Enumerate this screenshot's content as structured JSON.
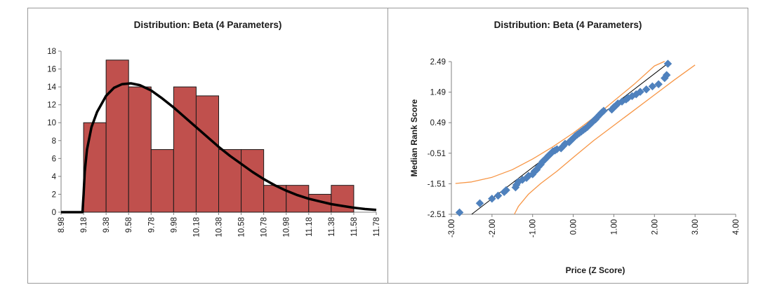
{
  "colors": {
    "bar_fill": "#C0504D",
    "bar_stroke": "#1a1a1a",
    "curve": "#000000",
    "points": "#4F81BD",
    "conf_band": "#F79646",
    "fit_line": "#000000",
    "axis": "#808080"
  },
  "chart_data": [
    {
      "type": "bar",
      "subtype": "histogram_with_fitted_curve",
      "title": "Distribution: Beta (4 Parameters)",
      "xlabel": "",
      "ylabel": "",
      "x_ticks": [
        "8.98",
        "9.18",
        "9.38",
        "9.58",
        "9.78",
        "9.98",
        "10.18",
        "10.38",
        "10.58",
        "10.78",
        "10.98",
        "11.18",
        "11.38",
        "11.58",
        "11.78"
      ],
      "xlim": [
        8.98,
        11.78
      ],
      "y_ticks": [
        "0",
        "2",
        "4",
        "6",
        "8",
        "10",
        "12",
        "14",
        "16",
        "18"
      ],
      "ylim": [
        0,
        18
      ],
      "grid": false,
      "bins": [
        {
          "start": 9.18,
          "end": 9.38,
          "count": 10
        },
        {
          "start": 9.38,
          "end": 9.58,
          "count": 17
        },
        {
          "start": 9.58,
          "end": 9.78,
          "count": 14
        },
        {
          "start": 9.78,
          "end": 9.98,
          "count": 7
        },
        {
          "start": 9.98,
          "end": 10.18,
          "count": 14
        },
        {
          "start": 10.18,
          "end": 10.38,
          "count": 13
        },
        {
          "start": 10.38,
          "end": 10.58,
          "count": 7
        },
        {
          "start": 10.58,
          "end": 10.78,
          "count": 7
        },
        {
          "start": 10.78,
          "end": 10.98,
          "count": 3
        },
        {
          "start": 10.98,
          "end": 11.18,
          "count": 3
        },
        {
          "start": 11.18,
          "end": 11.38,
          "count": 2
        },
        {
          "start": 11.38,
          "end": 11.58,
          "count": 3
        }
      ],
      "fitted_curve": {
        "name": "Beta (4 Parameters)",
        "x": [
          8.98,
          9.16,
          9.17,
          9.18,
          9.19,
          9.21,
          9.25,
          9.3,
          9.38,
          9.45,
          9.52,
          9.6,
          9.68,
          9.78,
          9.88,
          9.98,
          10.08,
          10.18,
          10.28,
          10.38,
          10.48,
          10.58,
          10.68,
          10.78,
          10.88,
          10.98,
          11.08,
          11.18,
          11.28,
          11.38,
          11.48,
          11.58,
          11.68,
          11.78
        ],
        "y": [
          0,
          0,
          0,
          2,
          4.5,
          7,
          9.5,
          11.2,
          13.0,
          13.9,
          14.3,
          14.4,
          14.2,
          13.6,
          12.7,
          11.7,
          10.6,
          9.5,
          8.4,
          7.3,
          6.3,
          5.4,
          4.5,
          3.7,
          3.0,
          2.4,
          1.9,
          1.5,
          1.2,
          0.9,
          0.7,
          0.5,
          0.35,
          0.25
        ]
      }
    },
    {
      "type": "scatter",
      "subtype": "probability_plot",
      "title": "Distribution: Beta (4 Parameters)",
      "xlabel": "Price (Z Score)",
      "ylabel": "Median Rank Score",
      "x_ticks": [
        "-3.00",
        "-2.00",
        "-1.00",
        "0.00",
        "1.00",
        "2.00",
        "3.00",
        "4.00"
      ],
      "xlim": [
        -3,
        4
      ],
      "y_ticks": [
        "2.49",
        "1.49",
        "0.49",
        "-0.51",
        "-1.51",
        "-2.51"
      ],
      "ylim": [
        -2.51,
        2.49
      ],
      "grid": false,
      "points": {
        "x": [
          -2.8,
          -2.3,
          -2.0,
          -1.85,
          -1.7,
          -1.65,
          -1.42,
          -1.4,
          -1.35,
          -1.25,
          -1.15,
          -1.1,
          -1.0,
          -0.95,
          -0.9,
          -0.85,
          -0.8,
          -0.75,
          -0.7,
          -0.65,
          -0.6,
          -0.55,
          -0.5,
          -0.45,
          -0.4,
          -0.3,
          -0.25,
          -0.2,
          -0.1,
          -0.05,
          0.0,
          0.05,
          0.1,
          0.15,
          0.2,
          0.25,
          0.3,
          0.35,
          0.4,
          0.45,
          0.5,
          0.55,
          0.6,
          0.65,
          0.7,
          0.75,
          0.95,
          1.0,
          1.05,
          1.1,
          1.2,
          1.3,
          1.35,
          1.45,
          1.55,
          1.65,
          1.8,
          1.95,
          2.1,
          2.25,
          2.3,
          2.33
        ],
        "y": [
          -2.45,
          -2.15,
          -2.0,
          -1.9,
          -1.78,
          -1.72,
          -1.63,
          -1.55,
          -1.45,
          -1.38,
          -1.32,
          -1.25,
          -1.2,
          -1.1,
          -1.05,
          -0.95,
          -0.88,
          -0.78,
          -0.72,
          -0.65,
          -0.58,
          -0.52,
          -0.45,
          -0.42,
          -0.38,
          -0.35,
          -0.28,
          -0.2,
          -0.15,
          -0.08,
          -0.02,
          0.05,
          0.1,
          0.15,
          0.2,
          0.25,
          0.3,
          0.35,
          0.42,
          0.48,
          0.55,
          0.6,
          0.68,
          0.75,
          0.82,
          0.88,
          0.92,
          1.0,
          1.05,
          1.12,
          1.18,
          1.25,
          1.3,
          1.36,
          1.42,
          1.5,
          1.58,
          1.68,
          1.75,
          1.95,
          2.05,
          2.42
        ]
      },
      "fit_line": {
        "x": [
          -2.5,
          2.35
        ],
        "y": [
          -2.51,
          2.45
        ]
      },
      "upper_band": {
        "x": [
          -2.9,
          -2.5,
          -2.0,
          -1.5,
          -1.0,
          -0.5,
          0.0,
          0.5,
          1.0,
          1.5,
          2.0,
          2.25
        ],
        "y": [
          -1.5,
          -1.45,
          -1.3,
          -1.05,
          -0.7,
          -0.3,
          0.15,
          0.65,
          1.2,
          1.75,
          2.35,
          2.5
        ]
      },
      "lower_band": {
        "x": [
          -1.45,
          -1.35,
          -1.1,
          -0.8,
          -0.4,
          0.0,
          0.5,
          1.0,
          1.5,
          2.0,
          2.5,
          3.0
        ],
        "y": [
          -2.51,
          -2.25,
          -1.85,
          -1.5,
          -1.1,
          -0.65,
          -0.1,
          0.4,
          0.9,
          1.4,
          1.9,
          2.38
        ]
      }
    }
  ]
}
